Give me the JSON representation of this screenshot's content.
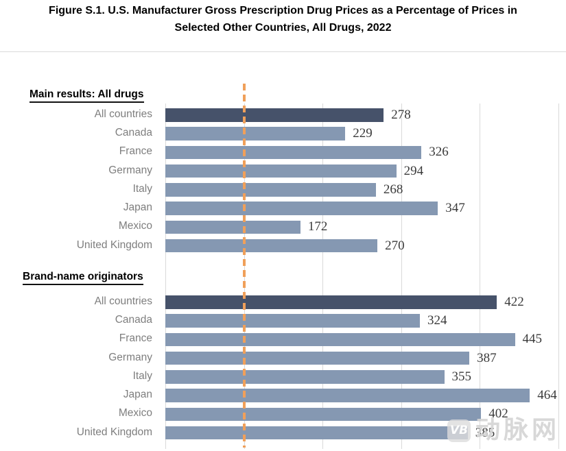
{
  "figure": {
    "title_lines": [
      "Figure S.1. U.S. Manufacturer Gross Prescription Drug Prices as a Percentage of Prices in",
      "Selected Other Countries, All Drugs, 2022"
    ]
  },
  "chart_data": {
    "type": "bar",
    "orientation": "horizontal",
    "title": "Figure S.1. U.S. Manufacturer Gross Prescription Drug Prices as a Percentage of Prices in Selected Other Countries, All Drugs, 2022",
    "categories": [
      "All countries",
      "Canada",
      "France",
      "Germany",
      "Italy",
      "Japan",
      "Mexico",
      "United Kingdom"
    ],
    "groups": [
      {
        "header": "Main results: All drugs",
        "values": [
          278,
          229,
          326,
          294,
          268,
          347,
          172,
          270
        ]
      },
      {
        "header": "Brand-name originators",
        "values": [
          422,
          324,
          445,
          387,
          355,
          464,
          402,
          385
        ]
      }
    ],
    "xlim": [
      0,
      500
    ],
    "gridline_step": 100,
    "grid": true,
    "value_labels": true,
    "reference_line_x": 100,
    "highlight_category": "All countries",
    "legend": "none",
    "axis_tick_labels_visible": false,
    "colors": {
      "highlight_bar": "#46526A",
      "bar": "#8598B2",
      "reference_line": "#F0A05A",
      "gridline": "#D9D9D9",
      "category_label": "#7E7E7E",
      "value_label": "#3A3A3A",
      "header_text": "#000000"
    }
  },
  "watermark": {
    "logo_text": "VB",
    "text": "动脉网"
  }
}
